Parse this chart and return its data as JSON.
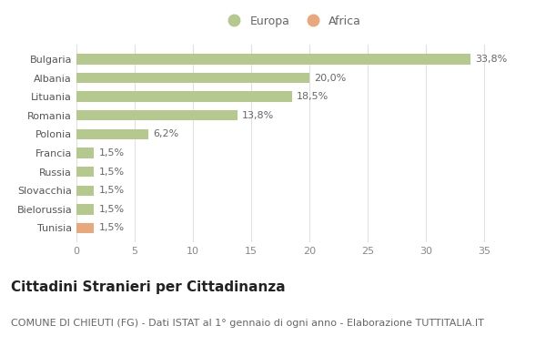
{
  "categories": [
    "Tunisia",
    "Bielorussia",
    "Slovacchia",
    "Russia",
    "Francia",
    "Polonia",
    "Romania",
    "Lituania",
    "Albania",
    "Bulgaria"
  ],
  "values": [
    1.5,
    1.5,
    1.5,
    1.5,
    1.5,
    6.2,
    13.8,
    18.5,
    20.0,
    33.8
  ],
  "labels": [
    "1,5%",
    "1,5%",
    "1,5%",
    "1,5%",
    "1,5%",
    "6,2%",
    "13,8%",
    "18,5%",
    "20,0%",
    "33,8%"
  ],
  "colors": [
    "#e8a87c",
    "#b5c98e",
    "#b5c98e",
    "#b5c98e",
    "#b5c98e",
    "#b5c98e",
    "#b5c98e",
    "#b5c98e",
    "#b5c98e",
    "#b5c98e"
  ],
  "europa_color": "#b5c98e",
  "africa_color": "#e8a87c",
  "xlim": [
    0,
    37
  ],
  "xticks": [
    0,
    5,
    10,
    15,
    20,
    25,
    30,
    35
  ],
  "title": "Cittadini Stranieri per Cittadinanza",
  "subtitle": "COMUNE DI CHIEUTI (FG) - Dati ISTAT al 1° gennaio di ogni anno - Elaborazione TUTTITALIA.IT",
  "background_color": "#ffffff",
  "grid_color": "#e0e0e0",
  "bar_height": 0.55,
  "legend_labels": [
    "Europa",
    "Africa"
  ],
  "title_fontsize": 11,
  "subtitle_fontsize": 8,
  "label_fontsize": 8,
  "tick_fontsize": 8,
  "ytick_fontsize": 8
}
